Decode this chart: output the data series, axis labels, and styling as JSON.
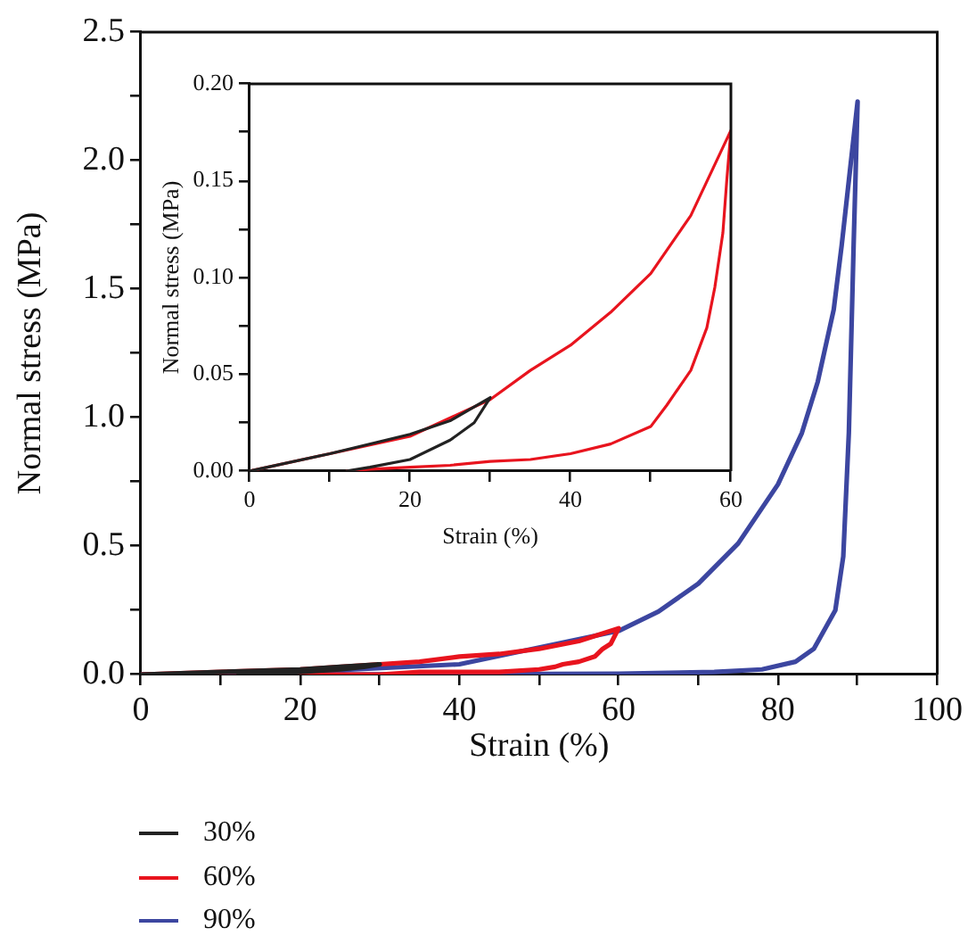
{
  "chart_data": [
    {
      "type": "line",
      "xlabel": "Strain (%)",
      "ylabel": "Normal stress (MPa)",
      "xlim": [
        0,
        100
      ],
      "ylim": [
        0,
        2.5
      ],
      "xticks": [
        0,
        {
          "value": 10,
          "label": null
        },
        20,
        {
          "value": 30,
          "label": null
        },
        40,
        {
          "value": 50,
          "label": null
        },
        60,
        {
          "value": 70,
          "label": null
        },
        80,
        {
          "value": 90,
          "label": null
        },
        100
      ],
      "yticks": [
        {
          "value": 0,
          "label": "0.0"
        },
        {
          "value": 0.25,
          "label": null
        },
        0.5,
        {
          "value": 0.75,
          "label": null
        },
        {
          "value": 1,
          "label": "1.0"
        },
        {
          "value": 1.25,
          "label": null
        },
        1.5,
        {
          "value": 1.75,
          "label": null
        },
        {
          "value": 2,
          "label": "2.0"
        },
        {
          "value": 2.25,
          "label": null
        },
        2.5
      ],
      "legend": "bottom",
      "grid": false,
      "marker": "none",
      "line_style": "solid",
      "series": [
        {
          "name": "30%",
          "color": "#222222",
          "x": [
            0,
            10,
            20,
            25,
            30,
            28,
            25,
            20,
            15,
            12
          ],
          "values": [
            0,
            0.01,
            0.02,
            0.03,
            0.04,
            0.03,
            0.02,
            0.01,
            0,
            0
          ]
        },
        {
          "name": "60%",
          "color": "#e8141e",
          "x": [
            0,
            10,
            20,
            30,
            35,
            40,
            45,
            50,
            55,
            60,
            59.5,
            59,
            58,
            57,
            55,
            53,
            52,
            50,
            45,
            40,
            35,
            30,
            25,
            20,
            15,
            12
          ],
          "values": [
            0,
            0.01,
            0.02,
            0.04,
            0.05,
            0.07,
            0.08,
            0.1,
            0.13,
            0.18,
            0.15,
            0.12,
            0.1,
            0.07,
            0.05,
            0.04,
            0.03,
            0.02,
            0.01,
            0.01,
            0.01,
            0,
            0,
            0,
            0,
            0
          ]
        },
        {
          "name": "90%",
          "color": "#3c46a0",
          "x": [
            0,
            20,
            40,
            60,
            65,
            70,
            75,
            80,
            83,
            85,
            87,
            88,
            89,
            90,
            89.5,
            88.9,
            88.2,
            87.2,
            84.5,
            82.2,
            78,
            72,
            60,
            40,
            20
          ],
          "values": [
            0,
            0.01,
            0.04,
            0.17,
            0.245,
            0.354,
            0.51,
            0.74,
            0.94,
            1.14,
            1.42,
            1.67,
            1.95,
            2.23,
            1.67,
            0.94,
            0.46,
            0.25,
            0.1,
            0.05,
            0.02,
            0.01,
            0.003,
            0.001,
            0
          ]
        }
      ]
    },
    {
      "type": "line",
      "xlabel": "Strain (%)",
      "ylabel": "Normal stress (MPa)",
      "xlim": [
        0,
        60
      ],
      "ylim": [
        0,
        0.2
      ],
      "xticks": [
        0,
        {
          "value": 10,
          "label": null
        },
        20,
        {
          "value": 30,
          "label": null
        },
        40,
        {
          "value": 50,
          "label": null
        },
        60
      ],
      "yticks": [
        {
          "value": 0,
          "label": "0.00"
        },
        {
          "value": 0.025,
          "label": null
        },
        {
          "value": 0.05,
          "label": "0.05"
        },
        {
          "value": 0.075,
          "label": null
        },
        {
          "value": 0.1,
          "label": "0.10"
        },
        {
          "value": 0.125,
          "label": null
        },
        {
          "value": 0.15,
          "label": "0.15"
        },
        {
          "value": 0.175,
          "label": null
        },
        {
          "value": 0.2,
          "label": "0.20"
        }
      ],
      "grid": false,
      "marker": "none",
      "line_style": "solid",
      "series": [
        {
          "color": "#222222",
          "x": [
            0,
            10,
            20,
            25,
            30,
            28,
            25,
            20,
            15,
            12
          ],
          "values": [
            0,
            0.009,
            0.019,
            0.026,
            0.038,
            0.025,
            0.016,
            0.006,
            0.002,
            0
          ]
        },
        {
          "color": "#e8141e",
          "x": [
            0,
            10,
            20,
            30,
            35,
            40,
            45,
            50,
            55,
            60,
            59.5,
            59,
            58,
            57,
            55,
            53,
            52,
            50,
            45,
            40,
            35,
            30,
            25,
            20,
            15,
            12
          ],
          "values": [
            0,
            0.009,
            0.018,
            0.037,
            0.052,
            0.065,
            0.082,
            0.102,
            0.132,
            0.176,
            0.151,
            0.123,
            0.095,
            0.074,
            0.052,
            0.04,
            0.034,
            0.023,
            0.014,
            0.009,
            0.006,
            0.005,
            0.003,
            0.002,
            0.001,
            0
          ]
        }
      ]
    }
  ]
}
